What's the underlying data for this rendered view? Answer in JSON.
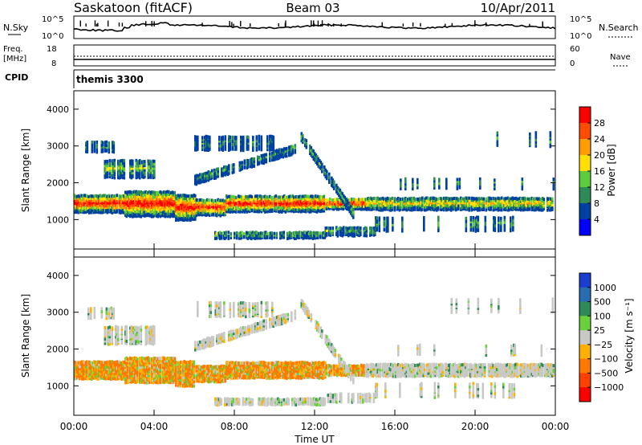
{
  "header": {
    "station": "Saskatoon (fitACF)",
    "beam": "Beam 03",
    "date": "10/Apr/2011"
  },
  "strip_nsky": {
    "left_label": "N.Sky",
    "ticks_left": [
      "10^5",
      "10^0"
    ],
    "ticks_right": [
      "10^5",
      "10^0"
    ],
    "right_label": "N.Search"
  },
  "strip_freq": {
    "left_label": "Freq.",
    "left_unit": "[MHz]",
    "ticks_left": [
      "18",
      "8"
    ],
    "ticks_right": [
      "60",
      "0"
    ],
    "right_label": "Nave"
  },
  "strip_cpid": {
    "left_label": "CPID",
    "value": "themis 3300"
  },
  "chart_data": [
    {
      "type": "heatmap",
      "name": "power",
      "ylabel": "Slant Range [km]",
      "ylim": [
        200,
        4500
      ],
      "yticks": [
        1000,
        2000,
        3000,
        4000
      ],
      "xlim": [
        0,
        24
      ],
      "colorbar": {
        "label": "Power [dB]",
        "ticks": [
          "28",
          "24",
          "20",
          "16",
          "12",
          "8",
          "4"
        ],
        "colors": [
          "#ff0000",
          "#ff4c00",
          "#ff9c00",
          "#ffe000",
          "#5ccc3c",
          "#2e8b57",
          "#0040a0",
          "#0000ff"
        ]
      }
    },
    {
      "type": "heatmap",
      "name": "velocity",
      "ylabel": "Slant Range [km]",
      "ylim": [
        200,
        4500
      ],
      "yticks": [
        1000,
        2000,
        3000,
        4000
      ],
      "xlim": [
        0,
        24
      ],
      "colorbar": {
        "label": "Velocity [m s⁻¹]",
        "ticks": [
          "1000",
          "500",
          "100",
          "25",
          "−25",
          "−100",
          "−500",
          "−1000"
        ],
        "colors": [
          "#1a3fd0",
          "#2a6cb0",
          "#2e8b57",
          "#6ad13c",
          "#c8c8c4",
          "#ffb000",
          "#ff7800",
          "#ff4000",
          "#ff0000"
        ]
      }
    }
  ],
  "xaxis": {
    "ticks": [
      "00:00",
      "04:00",
      "08:00",
      "12:00",
      "16:00",
      "20:00",
      "00:00"
    ],
    "label": "Time UT"
  }
}
